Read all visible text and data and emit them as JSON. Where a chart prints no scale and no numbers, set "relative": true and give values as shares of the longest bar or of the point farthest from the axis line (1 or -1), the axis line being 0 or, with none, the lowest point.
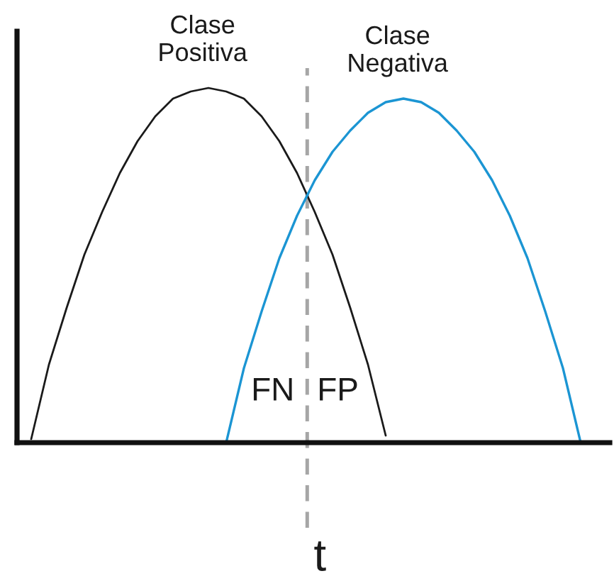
{
  "chart_data": {
    "type": "line",
    "relative": true,
    "categories": [
      null,
      null,
      null,
      null,
      null,
      null,
      null,
      null,
      null,
      null,
      null,
      null,
      null,
      null,
      null,
      null,
      null,
      null,
      null,
      null,
      null,
      null,
      null,
      null,
      null,
      null,
      null,
      null,
      null,
      null,
      null,
      null
    ],
    "series": [
      {
        "name": "Clase\nPositiva",
        "color": "#1a1a1a",
        "values": [
          0.01,
          0.22,
          0.38,
          0.53,
          0.65,
          0.76,
          0.85,
          0.92,
          0.97,
          0.99,
          1.0,
          0.99,
          0.97,
          0.92,
          0.85,
          0.76,
          0.65,
          0.53,
          0.38,
          0.22,
          0.02,
          null,
          null,
          null,
          null,
          null,
          null,
          null,
          null,
          null,
          null,
          null
        ]
      },
      {
        "name": "Clase\nNegativa",
        "color": "#1b95d3",
        "values": [
          null,
          null,
          null,
          null,
          null,
          null,
          null,
          null,
          null,
          null,
          null,
          0.0,
          0.21,
          0.37,
          0.52,
          0.64,
          0.74,
          0.82,
          0.88,
          0.93,
          0.96,
          0.97,
          0.96,
          0.93,
          0.88,
          0.82,
          0.74,
          0.64,
          0.52,
          0.37,
          0.21,
          0.0
        ]
      }
    ],
    "annotations": [
      "FN",
      "FP",
      "t"
    ]
  }
}
